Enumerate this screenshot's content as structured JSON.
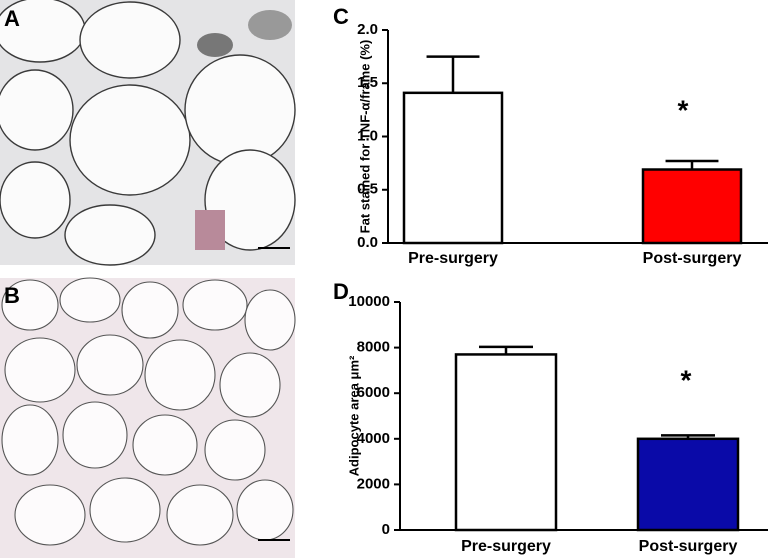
{
  "images": [
    {
      "label": "A"
    },
    {
      "label": "B"
    }
  ],
  "chart_data": [
    {
      "type": "bar",
      "panel_label": "C",
      "ylabel": "Fat stained for TNF-α/frame (%)",
      "categories": [
        "Pre-surgery",
        "Post-surgery"
      ],
      "values": [
        1.41,
        0.69
      ],
      "errors": [
        0.34,
        0.08
      ],
      "colors": [
        "#ffffff",
        "#ff0000"
      ],
      "annotation": "*",
      "ylim": [
        0,
        2.0
      ],
      "yticks": [
        {
          "value": 0,
          "label": "0.0"
        },
        0.5,
        {
          "value": 1.0,
          "label": "1.0"
        },
        1.5,
        {
          "value": 2.0,
          "label": "2.0"
        }
      ]
    },
    {
      "type": "bar",
      "panel_label": "D",
      "ylabel": "Adipocyte area μm²",
      "categories": [
        "Pre-surgery",
        "Post-surgery"
      ],
      "values": [
        7700,
        4000
      ],
      "errors": [
        330,
        150
      ],
      "colors": [
        "#ffffff",
        "#0a0aa8"
      ],
      "annotation": "*",
      "ylim": [
        0,
        10000
      ],
      "yticks": [
        0,
        2000,
        4000,
        6000,
        8000,
        10000
      ]
    }
  ]
}
